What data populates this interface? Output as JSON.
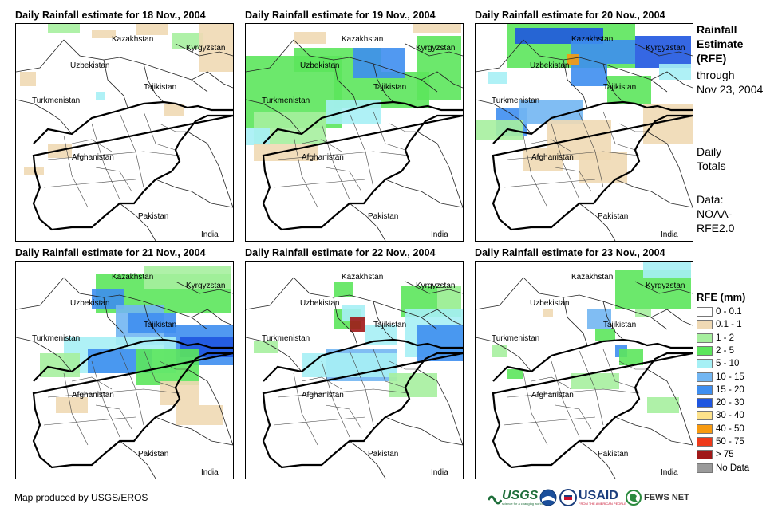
{
  "panels": [
    {
      "title": "Daily Rainfall estimate for 18 Nov., 2004"
    },
    {
      "title": "Daily Rainfall estimate for 19 Nov., 2004"
    },
    {
      "title": "Daily Rainfall estimate for 20 Nov., 2004"
    },
    {
      "title": "Daily Rainfall estimate for 21 Nov., 2004"
    },
    {
      "title": "Daily Rainfall estimate for 22 Nov., 2004"
    },
    {
      "title": "Daily Rainfall estimate for 23 Nov., 2004"
    }
  ],
  "countries": {
    "kazakhstan": "Kazakhstan",
    "kyrgyzstan": "Kyrgyzstan",
    "uzbekistan": "Uzbekistan",
    "tajikistan": "Tajikistan",
    "turkmenistan": "Turkmenistan",
    "afghanistan": "Afghanistan",
    "pakistan": "Pakistan",
    "india": "India"
  },
  "sidebar": {
    "title_l1": "Rainfall",
    "title_l2": "Estimate",
    "title_l3": "(RFE)",
    "through_l1": "through",
    "through_l2": "Nov 23, 2004",
    "daily_l1": "Daily",
    "daily_l2": "Totals",
    "data_l1": "Data:",
    "data_l2": "NOAA-",
    "data_l3": "RFE2.0"
  },
  "legend": {
    "title": "RFE (mm)",
    "items": [
      {
        "label": "0 - 0.1",
        "color": "#ffffff"
      },
      {
        "label": "0.1 - 1",
        "color": "#efd9b4"
      },
      {
        "label": "1 - 2",
        "color": "#a6ef9e"
      },
      {
        "label": "2 - 5",
        "color": "#5ce65c"
      },
      {
        "label": "5 - 10",
        "color": "#a6f0f5"
      },
      {
        "label": "10 - 15",
        "color": "#72b6f2"
      },
      {
        "label": "15 - 20",
        "color": "#3e8ef0"
      },
      {
        "label": "20 - 30",
        "color": "#1f56e0"
      },
      {
        "label": "30 - 40",
        "color": "#fde28a"
      },
      {
        "label": "40 - 50",
        "color": "#f79a10"
      },
      {
        "label": "50 - 75",
        "color": "#ee3a1a"
      },
      {
        "label": "> 75",
        "color": "#a01818"
      },
      {
        "label": "No Data",
        "color": "#9a9a9a"
      }
    ]
  },
  "footer": {
    "credit": "Map produced by USGS/EROS",
    "usgs": "USGS",
    "usgs_tagline": "science for a changing world",
    "usaid": "USAID",
    "usaid_tagline": "FROM THE AMERICAN PEOPLE",
    "fewsnet": "FEWS NET"
  }
}
